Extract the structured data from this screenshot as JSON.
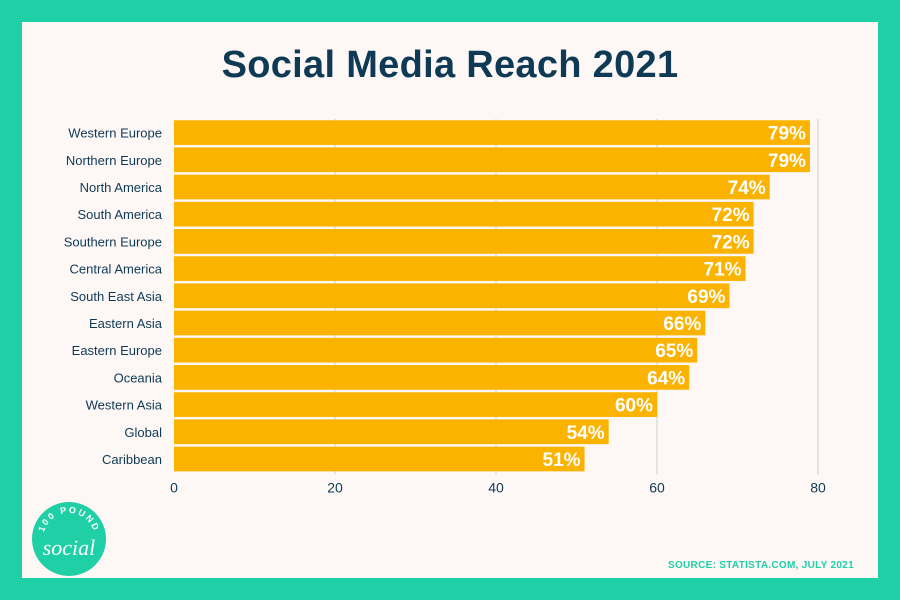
{
  "chart_data": {
    "type": "bar",
    "orientation": "horizontal",
    "title": "Social Media Reach  2021",
    "categories": [
      "Western Europe",
      "Northern Europe",
      "North America",
      "South America",
      "Southern Europe",
      "Central America",
      "South East Asia",
      "Eastern Asia",
      "Eastern Europe",
      "Oceania",
      "Western Asia",
      "Global",
      "Caribbean"
    ],
    "values": [
      79,
      79,
      74,
      72,
      72,
      71,
      69,
      66,
      65,
      64,
      60,
      54,
      51
    ],
    "data_labels": [
      "79%",
      "79%",
      "74%",
      "72%",
      "72%",
      "71%",
      "69%",
      "66%",
      "65%",
      "64%",
      "60%",
      "54%",
      "51%"
    ],
    "xlim": [
      0,
      80
    ],
    "xticks": [
      0,
      20,
      40,
      60,
      80
    ],
    "xtick_labels": [
      "0",
      "20",
      "40",
      "60",
      "80"
    ],
    "xlabel": "",
    "ylabel": "",
    "grid": true,
    "legend": "none"
  },
  "source": "SOURCE: STATISTA.COM, JULY 2021",
  "logo": {
    "top_text": "100 POUND",
    "script_text": "social"
  },
  "colors": {
    "background": "#1fcfa6",
    "panel": "#fdf8f6",
    "bar": "#fbb300",
    "title": "#0f3a55",
    "label": "#0f3a55",
    "data_label": "#ffffff",
    "grid": "#d0d0d0",
    "source": "#1fcfa6"
  }
}
